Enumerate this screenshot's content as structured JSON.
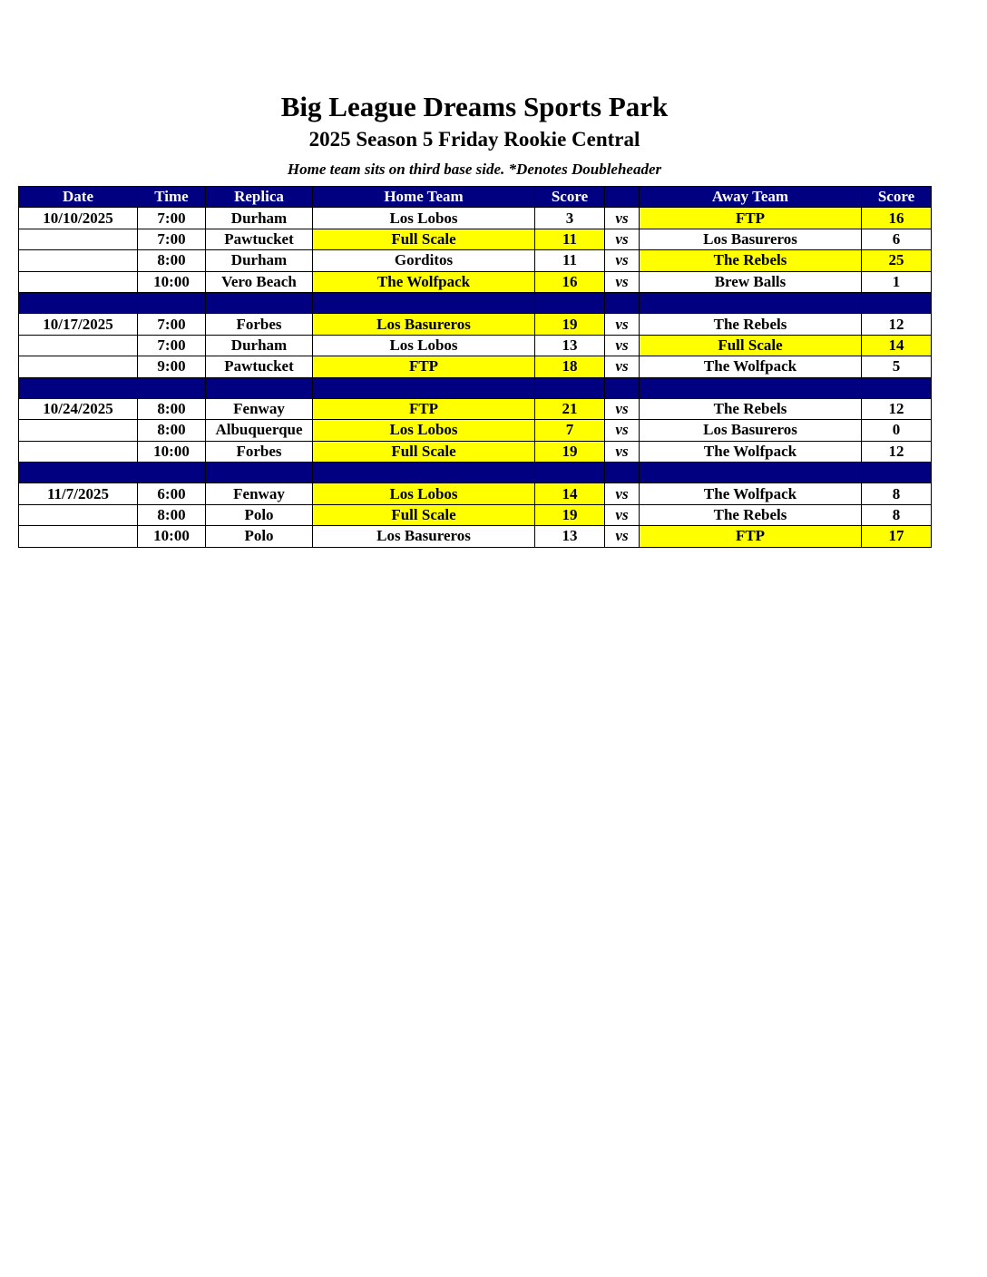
{
  "header": {
    "title": "Big League Dreams Sports Park",
    "subtitle": "2025 Season 5 Friday Rookie Central",
    "note": "Home team sits on third base side.  *Denotes Doubleheader"
  },
  "colors": {
    "header_bg": "#000080",
    "winner_highlight": "#ffff00"
  },
  "table": {
    "columns": [
      "Date",
      "Time",
      "Replica",
      "Home Team",
      "Score",
      "",
      "Away Team",
      "Score"
    ],
    "vs_label": "vs",
    "groups": [
      {
        "date": "10/10/2025",
        "games": [
          {
            "time": "7:00",
            "replica": "Durham",
            "home": "Los Lobos",
            "home_score": "3",
            "away": "FTP",
            "away_score": "16",
            "winner": "away"
          },
          {
            "time": "7:00",
            "replica": "Pawtucket",
            "home": "Full Scale",
            "home_score": "11",
            "away": "Los Basureros",
            "away_score": "6",
            "winner": "home"
          },
          {
            "time": "8:00",
            "replica": "Durham",
            "home": "Gorditos",
            "home_score": "11",
            "away": "The Rebels",
            "away_score": "25",
            "winner": "away"
          },
          {
            "time": "10:00",
            "replica": "Vero Beach",
            "home": "The Wolfpack",
            "home_score": "16",
            "away": "Brew Balls",
            "away_score": "1",
            "winner": "home"
          }
        ]
      },
      {
        "date": "10/17/2025",
        "games": [
          {
            "time": "7:00",
            "replica": "Forbes",
            "home": "Los Basureros",
            "home_score": "19",
            "away": "The Rebels",
            "away_score": "12",
            "winner": "home"
          },
          {
            "time": "7:00",
            "replica": "Durham",
            "home": "Los Lobos",
            "home_score": "13",
            "away": "Full Scale",
            "away_score": "14",
            "winner": "away"
          },
          {
            "time": "9:00",
            "replica": "Pawtucket",
            "home": "FTP",
            "home_score": "18",
            "away": "The Wolfpack",
            "away_score": "5",
            "winner": "home"
          }
        ]
      },
      {
        "date": "10/24/2025",
        "games": [
          {
            "time": "8:00",
            "replica": "Fenway",
            "home": "FTP",
            "home_score": "21",
            "away": "The Rebels",
            "away_score": "12",
            "winner": "home"
          },
          {
            "time": "8:00",
            "replica": "Albuquerque",
            "home": "Los Lobos",
            "home_score": "7",
            "away": "Los Basureros",
            "away_score": "0",
            "winner": "home"
          },
          {
            "time": "10:00",
            "replica": "Forbes",
            "home": "Full Scale",
            "home_score": "19",
            "away": "The Wolfpack",
            "away_score": "12",
            "winner": "home"
          }
        ]
      },
      {
        "date": "11/7/2025",
        "games": [
          {
            "time": "6:00",
            "replica": "Fenway",
            "home": "Los Lobos",
            "home_score": "14",
            "away": "The Wolfpack",
            "away_score": "8",
            "winner": "home"
          },
          {
            "time": "8:00",
            "replica": "Polo",
            "home": "Full Scale",
            "home_score": "19",
            "away": "The Rebels",
            "away_score": "8",
            "winner": "home"
          },
          {
            "time": "10:00",
            "replica": "Polo",
            "home": "Los Basureros",
            "home_score": "13",
            "away": "FTP",
            "away_score": "17",
            "winner": "away"
          }
        ]
      }
    ]
  }
}
